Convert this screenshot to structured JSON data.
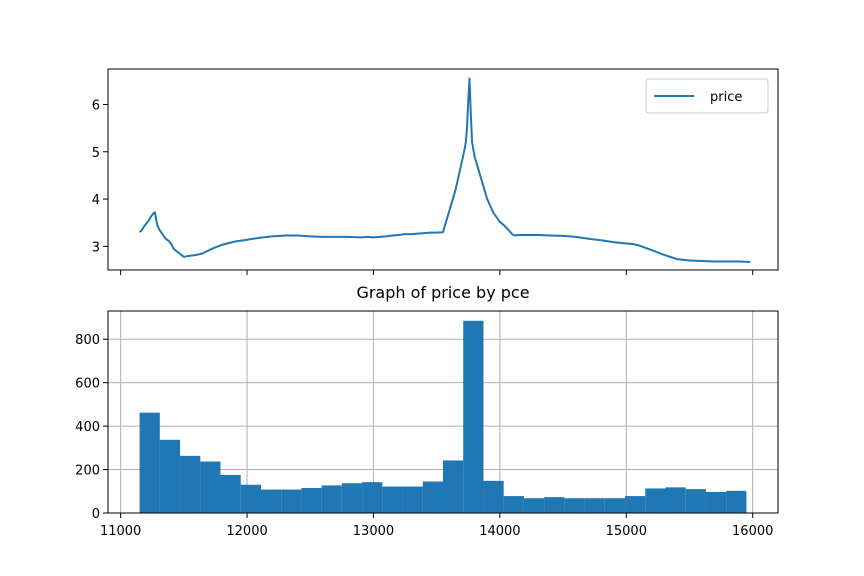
{
  "chart_data": [
    {
      "type": "line",
      "title": "",
      "xlabel": "",
      "ylabel": "",
      "legend": {
        "placement": "top-right",
        "entries": [
          "price"
        ]
      },
      "grid": false,
      "color": "#1f77b4",
      "xlim": [
        10900,
        16200
      ],
      "ylim": [
        2.5,
        6.75
      ],
      "xticks": [
        11000,
        12000,
        13000,
        14000,
        15000,
        16000
      ],
      "xtick_labels_visible": false,
      "yticks": [
        3,
        4,
        5,
        6
      ],
      "ytick_labels": [
        "3",
        "4",
        "5",
        "6"
      ],
      "series": [
        {
          "name": "price",
          "x": [
            11150,
            11170,
            11185,
            11200,
            11215,
            11230,
            11245,
            11260,
            11270,
            11280,
            11290,
            11300,
            11320,
            11340,
            11360,
            11380,
            11400,
            11420,
            11450,
            11480,
            11500,
            11520,
            11550,
            11600,
            11650,
            11700,
            11750,
            11800,
            11900,
            12000,
            12100,
            12200,
            12300,
            12400,
            12500,
            12600,
            12700,
            12800,
            12900,
            12950,
            13000,
            13050,
            13100,
            13150,
            13200,
            13250,
            13300,
            13400,
            13450,
            13500,
            13550,
            13600,
            13650,
            13700,
            13720,
            13730,
            13740,
            13750,
            13760,
            13770,
            13780,
            13800,
            13850,
            13900,
            13950,
            14000,
            14050,
            14100,
            14120,
            14150,
            14200,
            14300,
            14400,
            14500,
            14600,
            14700,
            14800,
            14900,
            15000,
            15050,
            15100,
            15200,
            15300,
            15400,
            15500,
            15600,
            15700,
            15800,
            15900,
            15980
          ],
          "y": [
            3.3,
            3.35,
            3.42,
            3.47,
            3.52,
            3.58,
            3.65,
            3.7,
            3.72,
            3.6,
            3.45,
            3.38,
            3.3,
            3.22,
            3.15,
            3.12,
            3.05,
            2.95,
            2.88,
            2.82,
            2.78,
            2.79,
            2.8,
            2.82,
            2.85,
            2.92,
            2.98,
            3.03,
            3.1,
            3.14,
            3.18,
            3.21,
            3.23,
            3.23,
            3.21,
            3.2,
            3.2,
            3.2,
            3.19,
            3.2,
            3.19,
            3.2,
            3.21,
            3.23,
            3.24,
            3.26,
            3.26,
            3.28,
            3.29,
            3.29,
            3.3,
            3.75,
            4.2,
            4.8,
            5.05,
            5.2,
            5.5,
            6.1,
            6.55,
            5.8,
            5.2,
            4.9,
            4.45,
            4.0,
            3.7,
            3.52,
            3.4,
            3.25,
            3.23,
            3.24,
            3.24,
            3.24,
            3.23,
            3.22,
            3.2,
            3.16,
            3.13,
            3.09,
            3.06,
            3.05,
            3.02,
            2.92,
            2.82,
            2.73,
            2.7,
            2.69,
            2.68,
            2.68,
            2.68,
            2.67
          ]
        }
      ]
    },
    {
      "type": "bar",
      "title": "Graph of price by pce",
      "xlabel": "",
      "ylabel": "",
      "grid": true,
      "color": "#1f77b4",
      "xlim": [
        10900,
        16200
      ],
      "ylim": [
        0,
        930
      ],
      "xticks": [
        11000,
        12000,
        13000,
        14000,
        15000,
        16000
      ],
      "xtick_labels": [
        "11000",
        "12000",
        "13000",
        "14000",
        "15000",
        "16000"
      ],
      "yticks": [
        0,
        200,
        400,
        600,
        800
      ],
      "ytick_labels": [
        "0",
        "200",
        "400",
        "600",
        "800"
      ],
      "bin_start": 11150,
      "bin_width": 160,
      "values": [
        462,
        337,
        263,
        237,
        175,
        130,
        108,
        108,
        115,
        127,
        137,
        142,
        122,
        122,
        145,
        242,
        885,
        148,
        78,
        68,
        73,
        68,
        68,
        68,
        78,
        113,
        118,
        110,
        97,
        102
      ]
    }
  ]
}
